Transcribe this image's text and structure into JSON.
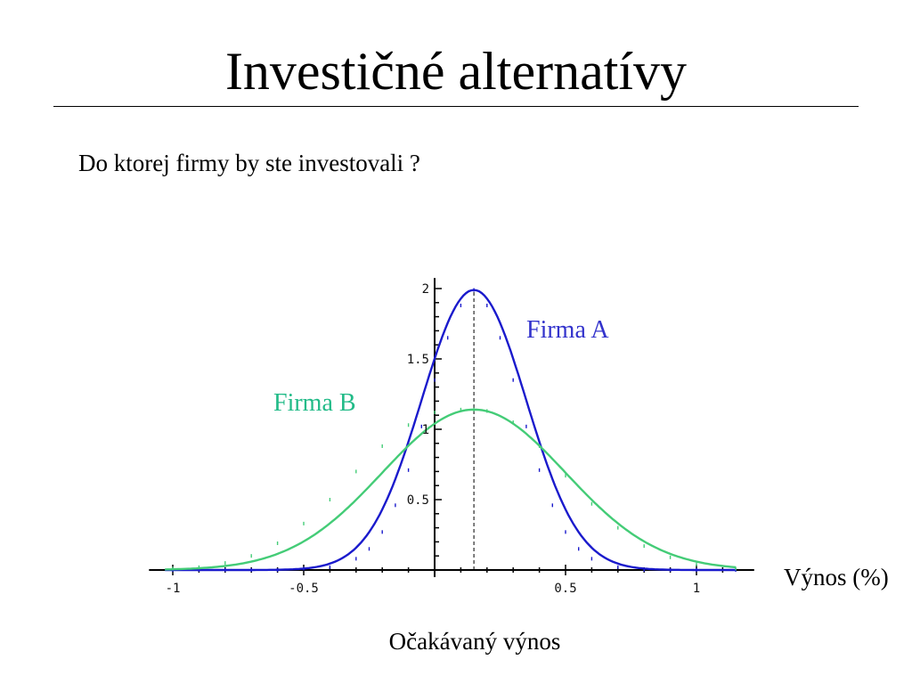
{
  "slide": {
    "title": "Investičné alternatívy",
    "question": "Do ktorej firmy by ste investovali ?",
    "caption": "Očakávaný výnos"
  },
  "chart_data": {
    "type": "line",
    "xlabel": "Výnos (%)",
    "ylabel": "",
    "xlim": [
      -1.05,
      1.2
    ],
    "ylim": [
      0,
      2.05
    ],
    "x_ticks": [
      -1,
      -0.5,
      0.5,
      1
    ],
    "x_tick_labels": [
      "-1",
      "-0.5",
      "0.5",
      "1"
    ],
    "y_ticks": [
      0.5,
      1,
      1.5,
      2
    ],
    "y_tick_labels": [
      "0.5",
      "1",
      "1.5",
      "2"
    ],
    "mean_marker": {
      "x": 0.15,
      "style": "dashed"
    },
    "series": [
      {
        "name": "Firma A",
        "color": "#1a1acc",
        "label_color": "#3333cc",
        "mean": 0.15,
        "sd": 0.2,
        "peak": 1.99,
        "x": [
          -1.0,
          -0.9,
          -0.8,
          -0.7,
          -0.6,
          -0.5,
          -0.4,
          -0.3,
          -0.25,
          -0.2,
          -0.15,
          -0.1,
          -0.05,
          0.0,
          0.05,
          0.1,
          0.15,
          0.2,
          0.25,
          0.3,
          0.35,
          0.4,
          0.45,
          0.5,
          0.55,
          0.6,
          0.7,
          0.8,
          0.9,
          1.0,
          1.15
        ],
        "values": [
          0,
          0,
          0,
          0,
          0,
          0.01,
          0.02,
          0.08,
          0.15,
          0.27,
          0.46,
          0.71,
          1.02,
          1.35,
          1.65,
          1.88,
          1.99,
          1.88,
          1.65,
          1.35,
          1.02,
          0.71,
          0.46,
          0.27,
          0.15,
          0.08,
          0.02,
          0,
          0,
          0,
          0
        ]
      },
      {
        "name": "Firma B",
        "color": "#44cc77",
        "label_color": "#22bb88",
        "mean": 0.15,
        "sd": 0.35,
        "peak": 1.14,
        "x": [
          -1.0,
          -0.9,
          -0.8,
          -0.7,
          -0.6,
          -0.5,
          -0.4,
          -0.3,
          -0.2,
          -0.1,
          0.0,
          0.1,
          0.15,
          0.2,
          0.3,
          0.4,
          0.5,
          0.6,
          0.7,
          0.8,
          0.9,
          1.0,
          1.15
        ],
        "values": [
          0.01,
          0.02,
          0.05,
          0.1,
          0.19,
          0.33,
          0.5,
          0.7,
          0.88,
          1.03,
          1.12,
          1.14,
          1.14,
          1.13,
          1.05,
          0.88,
          0.67,
          0.47,
          0.3,
          0.17,
          0.09,
          0.04,
          0.01
        ]
      }
    ]
  }
}
